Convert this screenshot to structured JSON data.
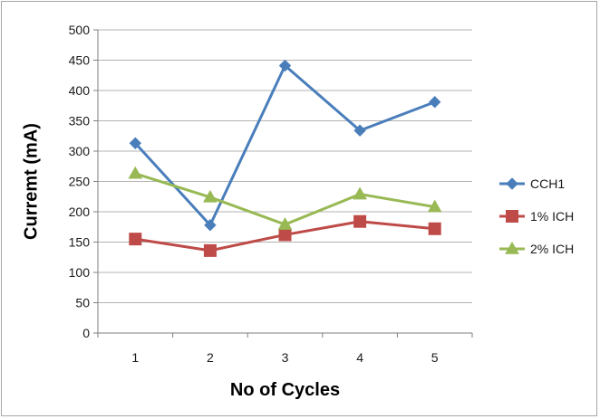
{
  "chart_data": {
    "type": "line",
    "title": "",
    "xlabel": "No of Cycles",
    "ylabel": "Curremt (mA)",
    "x": [
      1,
      2,
      3,
      4,
      5
    ],
    "categories": [
      "1",
      "2",
      "3",
      "4",
      "5"
    ],
    "ylim": [
      0,
      500
    ],
    "yticks": [
      0,
      50,
      100,
      150,
      200,
      250,
      300,
      350,
      400,
      450,
      500
    ],
    "grid": "horizontal",
    "legend_position": "right",
    "series": [
      {
        "name": "CCH1",
        "values": [
          313,
          178,
          441,
          334,
          381
        ],
        "color": "#4a7ebb",
        "marker": "diamond"
      },
      {
        "name": "1% ICH",
        "values": [
          155,
          136,
          162,
          184,
          172
        ],
        "color": "#be4b48",
        "marker": "square"
      },
      {
        "name": "2% ICH",
        "values": [
          263,
          224,
          179,
          229,
          208
        ],
        "color": "#98b954",
        "marker": "triangle"
      }
    ]
  }
}
